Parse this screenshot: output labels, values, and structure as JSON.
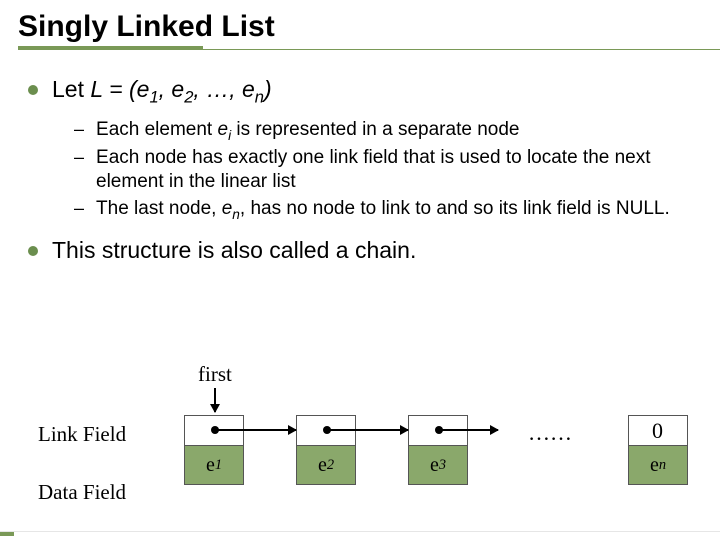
{
  "title": "Singly Linked List",
  "bullets": {
    "b1_prefix": "Let ",
    "b1_L": "L",
    "b1_eq": " = (",
    "b1_e1": "e",
    "b1_s1": "1",
    "b1_c1": ", ",
    "b1_e2": "e",
    "b1_s2": "2",
    "b1_c2": ", …, ",
    "b1_en": "e",
    "b1_sn": "n",
    "b1_close": ")",
    "b2": "This structure is also called a chain."
  },
  "subs": {
    "s1a": "Each element ",
    "s1_e": "e",
    "s1_i": "i",
    "s1b": " is represented in a separate node",
    "s2": "Each node has exactly one link field that is used to locate the next element in the linear list",
    "s3a": "The last node, ",
    "s3_e": "e",
    "s3_n": "n",
    "s3b": ", has no node to link to and so its link field is NULL."
  },
  "diagram": {
    "first": "first",
    "link_label": "Link Field",
    "data_label": "Data Field",
    "e": "e",
    "s1": "1",
    "s2": "2",
    "s3": "3",
    "sn": "n",
    "dots": "……",
    "zero": "0"
  },
  "colors": {
    "accent": "#7a9957",
    "node_fill": "#8aa86b"
  }
}
